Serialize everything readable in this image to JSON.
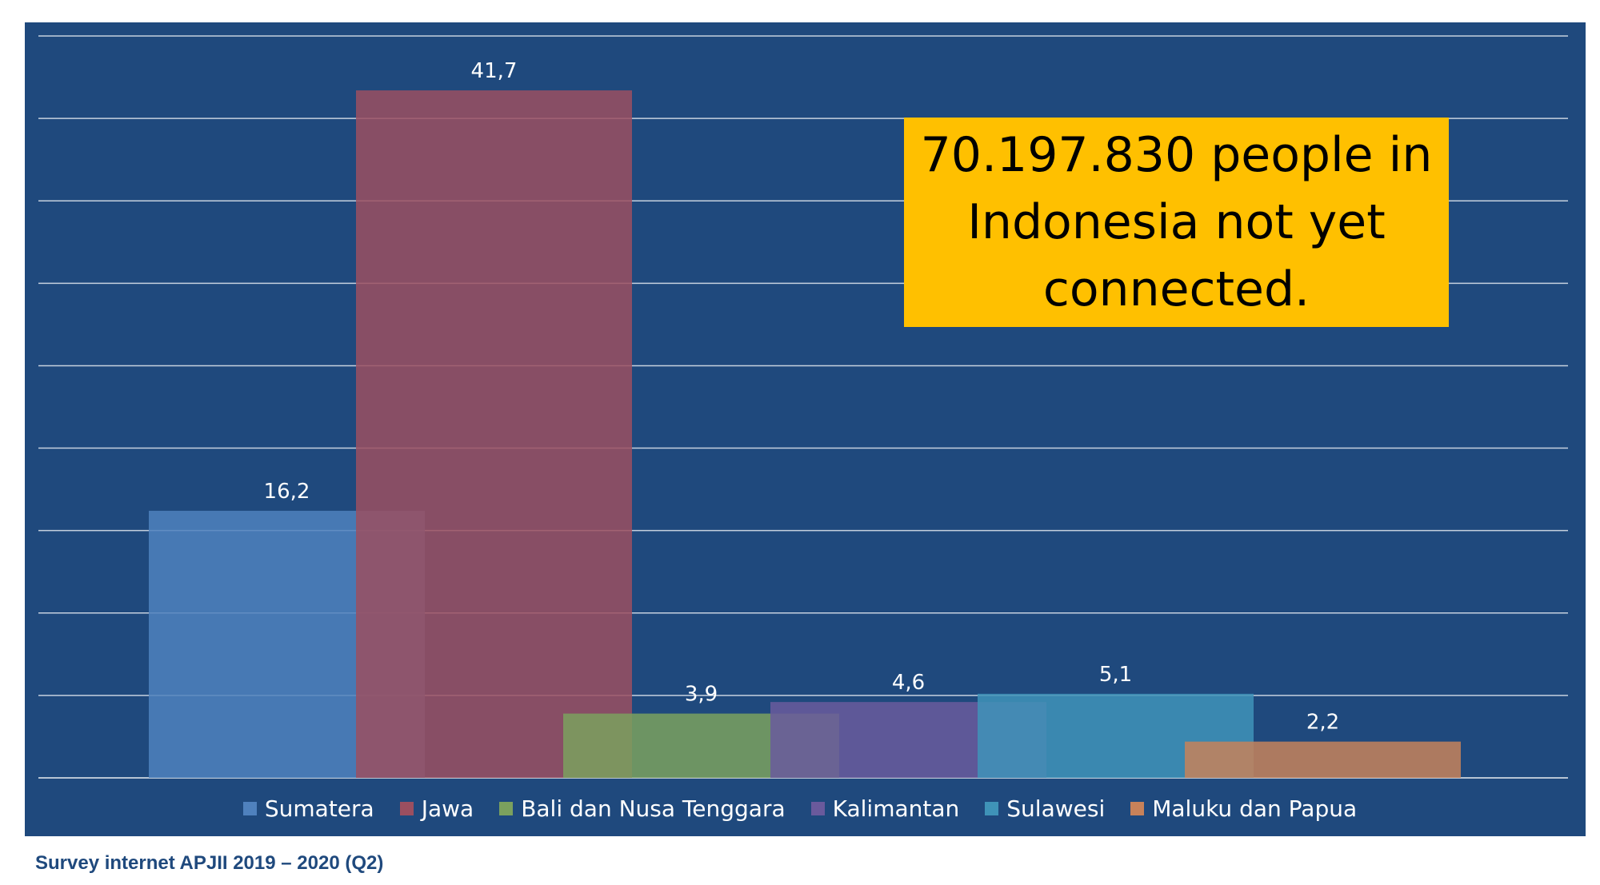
{
  "chart_data": {
    "type": "bar",
    "title": "",
    "xlabel": "",
    "ylabel": "",
    "ylim": [
      0,
      45
    ],
    "grid": true,
    "legend_position": "bottom",
    "categories": [
      "Sumatera",
      "Jawa",
      "Bali dan Nusa Tenggara",
      "Kalimantan",
      "Sulawesi",
      "Maluku dan Papua"
    ],
    "series": [
      {
        "name": "Sumatera",
        "value": 16.2,
        "label": "16,2",
        "color": "#4f81bd"
      },
      {
        "name": "Jawa",
        "value": 41.7,
        "label": "41,7",
        "color": "#9b4f60"
      },
      {
        "name": "Bali dan Nusa Tenggara",
        "value": 3.9,
        "label": "3,9",
        "color": "#7ba15e"
      },
      {
        "name": "Kalimantan",
        "value": 4.6,
        "label": "4,6",
        "color": "#6a5a9c"
      },
      {
        "name": "Sulawesi",
        "value": 5.1,
        "label": "5,1",
        "color": "#3f93b8"
      },
      {
        "name": "Maluku dan Papua",
        "value": 2.2,
        "label": "2,2",
        "color": "#c7825a"
      }
    ],
    "annotation": "70.197.830 people in Indonesia not yet connected."
  },
  "source_note": "Survey internet APJII  2019 – 2020 (Q2)"
}
